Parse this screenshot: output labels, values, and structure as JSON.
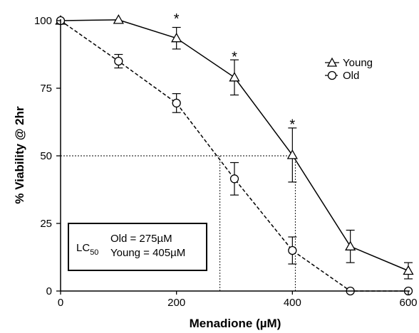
{
  "chart_data": {
    "type": "line",
    "xlabel": "Menadione (µM)",
    "ylabel": "% Viability @ 2hr",
    "xlim": [
      0,
      600
    ],
    "ylim": [
      0,
      100
    ],
    "x_ticks": [
      "0",
      "200",
      "400",
      "600"
    ],
    "x_tick_values": [
      0,
      200,
      400,
      600
    ],
    "y_ticks": [
      "0",
      "25",
      "50",
      "75",
      "100"
    ],
    "y_tick_values": [
      0,
      25,
      50,
      75,
      100
    ],
    "grid": false,
    "legend_position": "top-right",
    "series": [
      {
        "name": "Young",
        "marker": "triangle",
        "line_style": "solid",
        "x": [
          0,
          100,
          200,
          300,
          400,
          500,
          600
        ],
        "y": [
          100,
          100.3,
          93.5,
          79,
          50.3,
          16.5,
          7.5
        ],
        "err": [
          0,
          0,
          4,
          6.5,
          10,
          6,
          3
        ]
      },
      {
        "name": "Old",
        "marker": "circle",
        "line_style": "dashed",
        "x": [
          0,
          100,
          200,
          300,
          400,
          500,
          600
        ],
        "y": [
          100,
          85,
          69.5,
          41.5,
          15,
          0,
          0
        ],
        "err": [
          0,
          2.5,
          3.5,
          6,
          5,
          0,
          0
        ]
      }
    ],
    "significance": [
      {
        "label": "*",
        "x": 200,
        "y": 101
      },
      {
        "label": "*",
        "x": 300,
        "y": 87
      },
      {
        "label": "*",
        "x": 400,
        "y": 62
      }
    ],
    "reference_lines": {
      "level": 50,
      "old_x": 275,
      "young_x": 405
    },
    "lc50_box": {
      "label_main": "LC",
      "label_sub": "50",
      "old_line": "Old = 275µM",
      "young_line": "Young = 405µM"
    }
  }
}
